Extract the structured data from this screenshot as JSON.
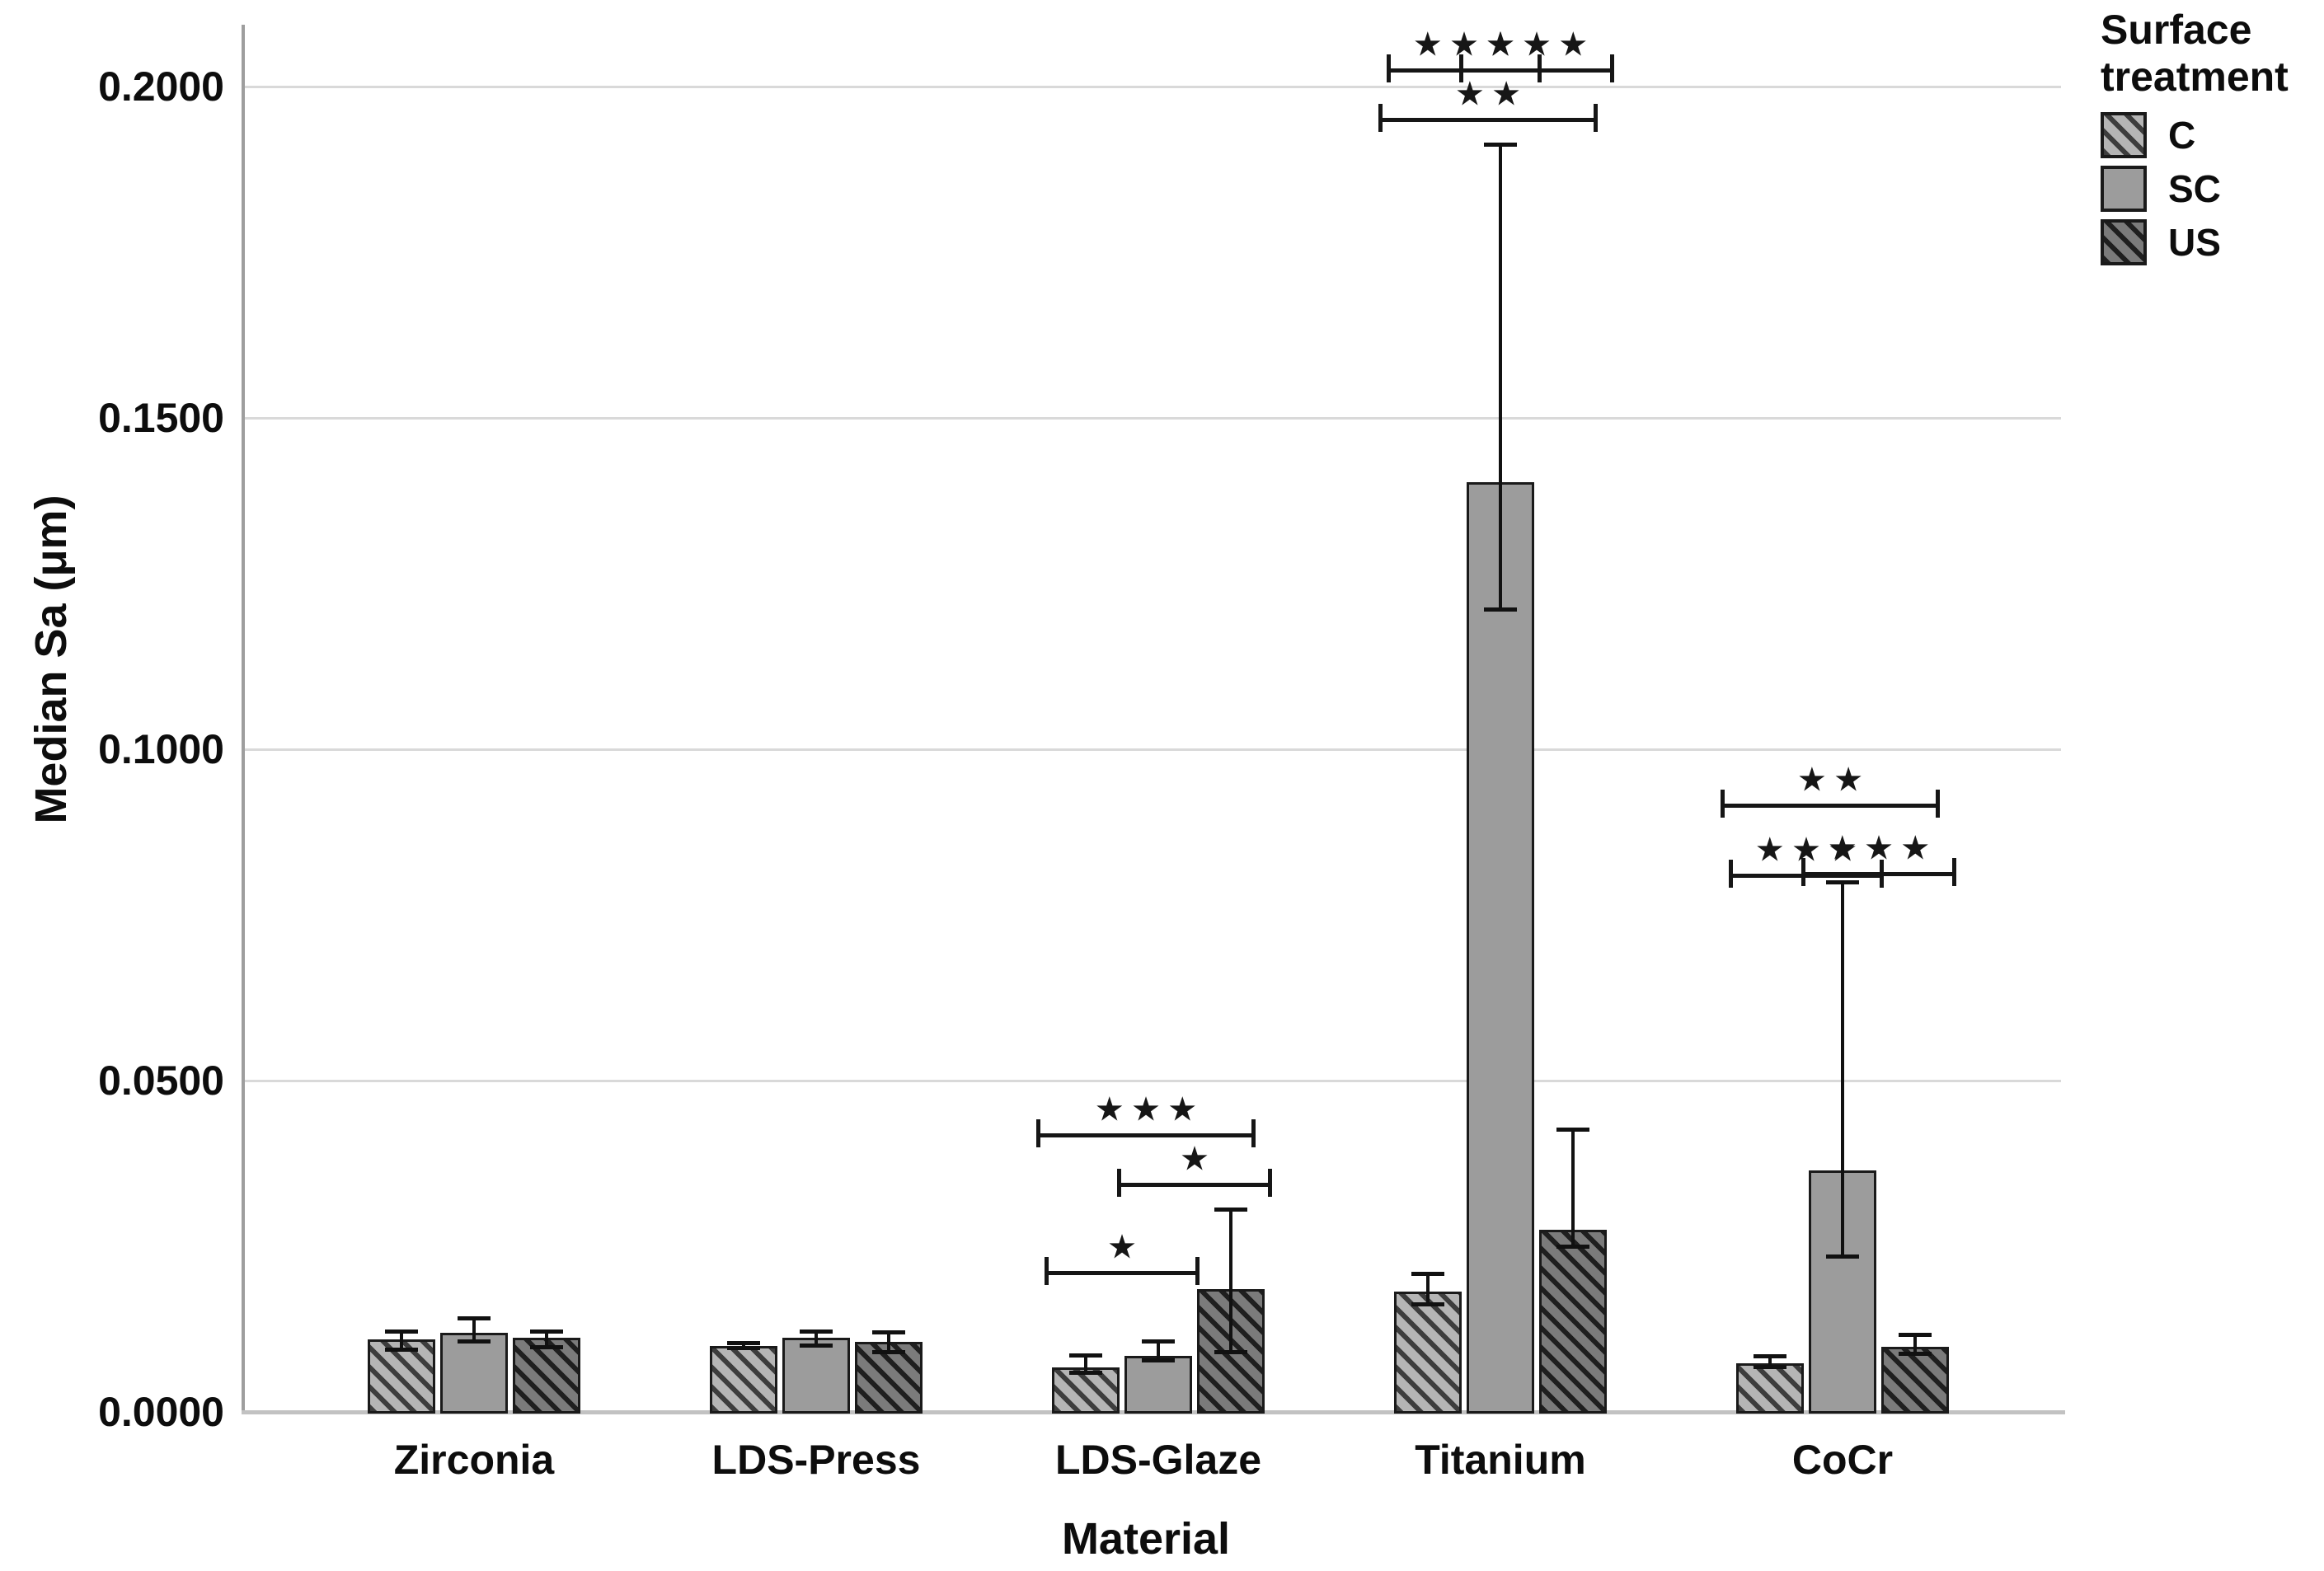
{
  "chart_data": {
    "type": "bar",
    "title": "",
    "xlabel": "Material",
    "ylabel": "Median Sa (μm)",
    "categories": [
      "Zirconia",
      "LDS-Press",
      "LDS-Glaze",
      "Titanium",
      "CoCr"
    ],
    "yticks": [
      {
        "label": "0.0000",
        "value": 0.0
      },
      {
        "label": "0.0500",
        "value": 0.05
      },
      {
        "label": "0.1000",
        "value": 0.1
      },
      {
        "label": "0.1500",
        "value": 0.15
      },
      {
        "label": "0.2000",
        "value": 0.2
      }
    ],
    "ylim": [
      0,
      0.21
    ],
    "grid": "horizontal",
    "legend": {
      "title": "Surface treatment",
      "position": "top-right",
      "entries": [
        {
          "label": "C",
          "pattern": "diagonal-hatch-light",
          "fill": "#b5b5b5",
          "hatch": "#3d3d3d"
        },
        {
          "label": "SC",
          "pattern": "solid",
          "fill": "#9c9c9c",
          "hatch": null
        },
        {
          "label": "US",
          "pattern": "diagonal-hatch-dark",
          "fill": "#7b7b7b",
          "hatch": "#1f1f1f"
        }
      ]
    },
    "series": [
      {
        "name": "C",
        "values": [
          0.0109,
          0.01,
          0.0067,
          0.0182,
          0.0073
        ],
        "err_low": [
          0.0095,
          0.0097,
          0.006,
          0.0163,
          0.0068
        ],
        "err_high": [
          0.0122,
          0.0105,
          0.0086,
          0.0209,
          0.0085
        ]
      },
      {
        "name": "SC",
        "values": [
          0.0119,
          0.0112,
          0.0085,
          0.1403,
          0.0364
        ],
        "err_low": [
          0.0107,
          0.0101,
          0.0078,
          0.1211,
          0.0235
        ],
        "err_high": [
          0.0142,
          0.0122,
          0.0107,
          0.1913,
          0.08
        ]
      },
      {
        "name": "US",
        "values": [
          0.0112,
          0.0106,
          0.0185,
          0.0275,
          0.0098
        ],
        "err_low": [
          0.0098,
          0.0091,
          0.0091,
          0.025,
          0.0088
        ],
        "err_high": [
          0.0122,
          0.0121,
          0.0306,
          0.0427,
          0.0117
        ]
      }
    ],
    "significance_brackets": [
      {
        "group": "LDS-Glaze",
        "from": "C",
        "to": "SC",
        "stars": "★",
        "y": 0.021
      },
      {
        "group": "LDS-Glaze",
        "from": "SC",
        "to": "US",
        "stars": "★",
        "y": 0.0343
      },
      {
        "group": "LDS-Glaze",
        "from": "C",
        "to": "US",
        "stars": "★★★",
        "y": 0.0418
      },
      {
        "group": "Titanium",
        "from": "C",
        "to": "SC",
        "stars": "★★★",
        "y": 0.2025
      },
      {
        "group": "Titanium",
        "from": "SC",
        "to": "US",
        "stars": "★★★",
        "y": 0.2025
      },
      {
        "group": "Titanium",
        "from": "C",
        "to": "US",
        "stars": "★★",
        "y": 0.195
      },
      {
        "group": "CoCr",
        "from": "C",
        "to": "SC",
        "stars": "★★★",
        "y": 0.081
      },
      {
        "group": "CoCr",
        "from": "SC",
        "to": "US",
        "stars": "★★★",
        "y": 0.0812
      },
      {
        "group": "CoCr",
        "from": "C",
        "to": "US",
        "stars": "★★",
        "y": 0.0915
      }
    ]
  },
  "colors": {
    "background": "#ffffff",
    "gridline": "#d9d9d9",
    "axis_spine": "#9e9e9e",
    "baseline": "#c2c2c2",
    "bar_outline": "#1a1a1a",
    "text": "#0d0d0d"
  }
}
